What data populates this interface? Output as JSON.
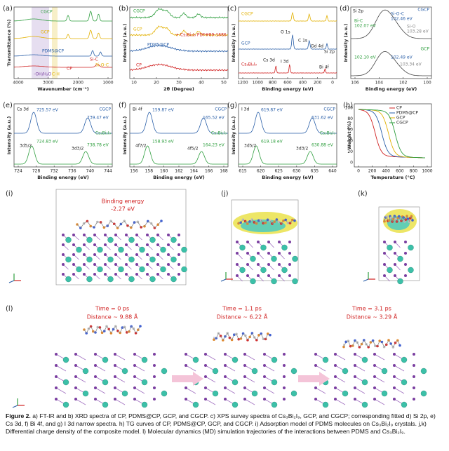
{
  "panels": [
    {
      "label": "(a)",
      "y_label": "Transmittance (%)",
      "x_label": "Wavenumber (cm⁻¹)",
      "x_ticks": [
        "4000",
        "3000",
        "2000",
        "1000"
      ],
      "texts": [
        "CGCP",
        "GCP",
        "PDMS@CP",
        "CP",
        "-OH/H₂O",
        "C-H",
        "Si-C",
        "Si-O-C"
      ]
    },
    {
      "label": "(b)",
      "y_label": "Intensity (a.u.)",
      "x_label": "2θ (Degree)",
      "x_ticks": [
        "10",
        "20",
        "30",
        "40",
        "50"
      ],
      "texts": [
        "CGCP",
        "GCP",
        "PDMS@CP",
        "CP",
        "+ Cs₃Bi₂I₉ PDF#89-1686"
      ]
    },
    {
      "label": "(c)",
      "y_label": "Intensity (a.u.)",
      "x_label": "Binding energy (eV)",
      "x_ticks": [
        "1200",
        "1000",
        "800",
        "600",
        "400",
        "200",
        "0"
      ],
      "texts": [
        "CGCP",
        "GCP",
        "Cs₃Bi₂I₉",
        "O 1s",
        "C 1s",
        "Gd 4d",
        "Si 2p",
        "Cs 3d",
        "I 3d",
        "Bi 4f"
      ]
    },
    {
      "label": "(d)",
      "y_label": "Intensity (a.u.)",
      "x_label": "Binding energy (eV)",
      "x_ticks": [
        "106",
        "104",
        "102",
        "100"
      ],
      "texts": [
        "Si 2p",
        "CGCP",
        "GCP",
        "Bi-C",
        "102.07 eV",
        "Si-O-C",
        "102.46 eV",
        "Si-O",
        "103.28 eV",
        "102.10 eV",
        "102.49 eV",
        "103.34 eV"
      ]
    },
    {
      "label": "(e)",
      "y_label": "Intensity (a.u.)",
      "x_label": "Binding energy (eV)",
      "x_ticks": [
        "724",
        "728",
        "732",
        "736",
        "740",
        "744"
      ],
      "texts": [
        "Cs 3d",
        "CGCP",
        "725.57 eV",
        "739.47 eV",
        "Cs₃Bi₂I₉",
        "724.83 eV",
        "738.78 eV",
        "3d5/2",
        "3d3/2"
      ]
    },
    {
      "label": "(f)",
      "y_label": "Intensity (a.u.)",
      "x_label": "Binding energy (eV)",
      "x_ticks": [
        "156",
        "158",
        "160",
        "162",
        "164",
        "166",
        "168"
      ],
      "texts": [
        "Bi 4f",
        "CGCP",
        "159.87 eV",
        "165.52 eV",
        "Cs₃Bi₂I₉",
        "158.93 eV",
        "164.23 eV",
        "4f7/2",
        "4f5/2"
      ]
    },
    {
      "label": "(g)",
      "y_label": "Intensity (a.u.)",
      "x_label": "Binding energy (eV)",
      "x_ticks": [
        "615",
        "620",
        "625",
        "630",
        "635",
        "640"
      ],
      "texts": [
        "I 3d",
        "CGCP",
        "619.87 eV",
        "631.62 eV",
        "Cs₃Bi₂I₉",
        "619.18 eV",
        "630.88 eV",
        "3d5/2",
        "3d3/2"
      ]
    },
    {
      "label": "(h)",
      "y_label": "Weight (%)",
      "x_label": "Temperature (°C)",
      "x_ticks": [
        "0",
        "200",
        "400",
        "600",
        "800",
        "1000"
      ],
      "y_ticks": [
        "100",
        "80",
        "60",
        "40",
        "20",
        "0"
      ],
      "texts": [
        "CP",
        "PDMS@CP",
        "GCP",
        "CGCP"
      ]
    }
  ],
  "models": {
    "i": {
      "label": "(i)",
      "texts": [
        "Binding energy",
        "-2.27 eV"
      ]
    },
    "j": {
      "label": "(j)"
    },
    "k": {
      "label": "(k)"
    },
    "l": {
      "label": "(l)",
      "texts": [
        "Time = 0 ps",
        "Distance ~ 9.88 Å",
        "Time = 1.1 ps",
        "Distance ~ 6.22 Å",
        "Time = 3.1 ps",
        "Distance ~ 3.29 Å"
      ]
    }
  },
  "caption": {
    "figure": "Figure 2.",
    "text": "a) FT-IR and b) XRD spectra of CP, PDMS@CP, GCP, and CGCP. c) XPS survey spectra of Cs₃Bi₂I₉, GCP, and CGCP; corresponding fitted d) Si 2p, e) Cs 3d, f) Bi 4f, and g) I 3d narrow spectra. h) TG curves of CP, PDMS@CP, GCP, and CGCP. i) Adsorption model of PDMS molecules on Cs₃Bi₂I₉ crystals. j,k) Differential charge density of the composite model. l) Molecular dynamics (MD) simulation trajectories of the interactions between PDMS and Cs₃Bi₂I₉."
  }
}
